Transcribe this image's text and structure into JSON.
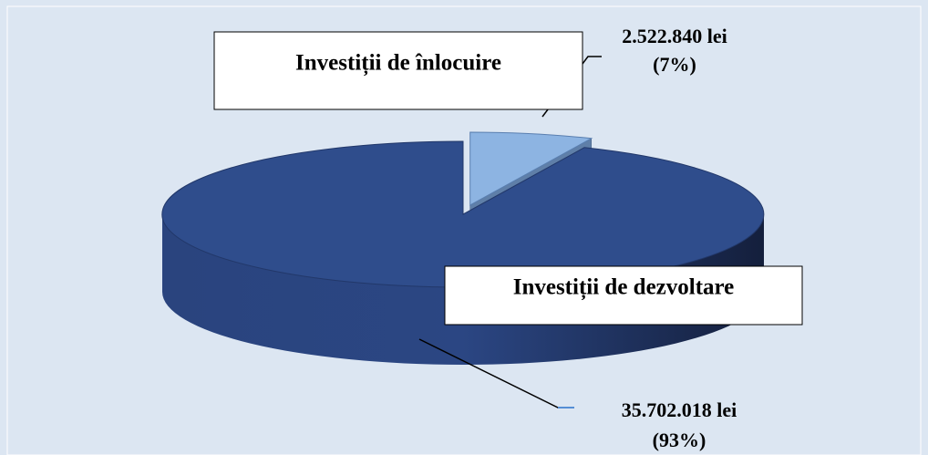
{
  "chart_data": {
    "type": "pie3d",
    "categories": [
      "Investiții de înlocuire",
      "Investiții de dezvoltare"
    ],
    "values": [
      2522840,
      35702018
    ],
    "value_labels": [
      "2.522.840 lei",
      "35.702.018 lei"
    ],
    "percent_labels": [
      "(7%)",
      "(93%)"
    ],
    "colors": [
      "#8db4e2",
      "#2f4d8c"
    ]
  }
}
